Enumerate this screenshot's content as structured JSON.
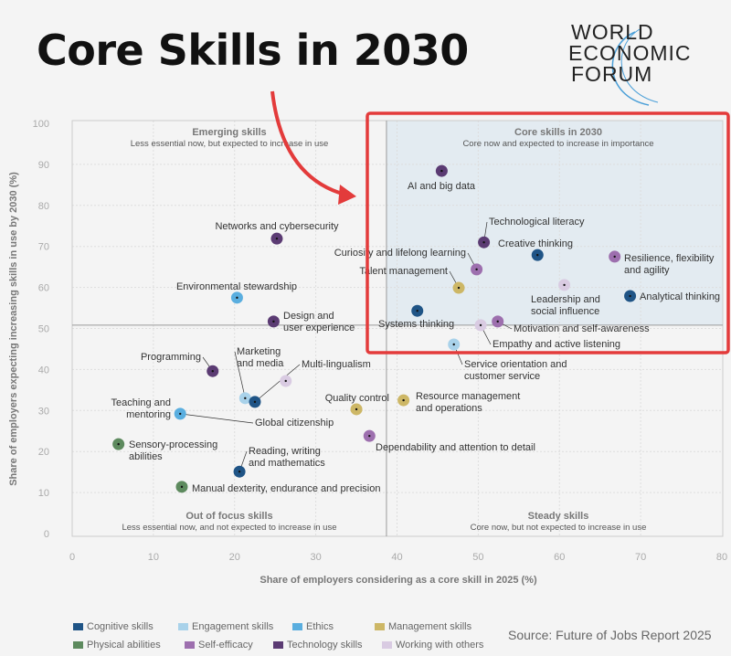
{
  "headline": "Core Skills in 2030",
  "logo": {
    "lines": [
      "WORLD",
      "ECONOMIC",
      "FORUM"
    ]
  },
  "source": "Source: Future of Jobs Report 2025",
  "chart_data": {
    "type": "scatter",
    "xlabel": "Share of employers considering as a core skill in 2025 (%)",
    "ylabel": "Share of employers expecting increasing skills in use by 2030 (%)",
    "xlim": [
      0,
      80
    ],
    "ylim": [
      0,
      100
    ],
    "xticks": [
      0,
      10,
      20,
      30,
      40,
      50,
      60,
      70,
      80
    ],
    "yticks": [
      0,
      10,
      20,
      30,
      40,
      50,
      60,
      70,
      80,
      90,
      100
    ],
    "grid": true,
    "dividers": {
      "x": 38.7,
      "y": 50.8
    },
    "highlight_quadrant": "top-right",
    "highlight_color": "#e33b3b",
    "quadrants": [
      {
        "title": "Emerging skills",
        "subtitle": "Less essential now, but expected to increase in use"
      },
      {
        "title": "Core skills in 2030",
        "subtitle": "Core now and expected to increase in importance"
      },
      {
        "title": "Out of focus skills",
        "subtitle": "Less essential now, and not expected to increase in use"
      },
      {
        "title": "Steady skills",
        "subtitle": "Core now, but not expected to increase in use"
      }
    ],
    "categories": [
      {
        "name": "Cognitive skills",
        "color": "#1f5486"
      },
      {
        "name": "Engagement skills",
        "color": "#a9d2ea"
      },
      {
        "name": "Ethics",
        "color": "#5aaedf"
      },
      {
        "name": "Management skills",
        "color": "#cdb766"
      },
      {
        "name": "Physical abilities",
        "color": "#5d8a5e"
      },
      {
        "name": "Self-efficacy",
        "color": "#9d6fae"
      },
      {
        "name": "Technology skills",
        "color": "#5b3b73"
      },
      {
        "name": "Working with others",
        "color": "#d9cbe2"
      }
    ],
    "points": [
      {
        "label": "AI and big data",
        "x": 45.5,
        "y": 88.4,
        "category": 6
      },
      {
        "label": "Technological literacy",
        "x": 50.7,
        "y": 71.0,
        "category": 6
      },
      {
        "label": "Creative thinking",
        "x": 57.3,
        "y": 67.9,
        "category": 0
      },
      {
        "label": "Resilience, flexibility|and agility",
        "x": 66.8,
        "y": 67.5,
        "category": 5
      },
      {
        "label": "Curiosity and lifelong learning",
        "x": 49.8,
        "y": 64.4,
        "category": 5
      },
      {
        "label": "Talent management",
        "x": 47.6,
        "y": 59.9,
        "category": 3
      },
      {
        "label": "Leadership and|social influence",
        "x": 60.6,
        "y": 60.6,
        "category": 7
      },
      {
        "label": "Analytical thinking",
        "x": 68.7,
        "y": 57.9,
        "category": 0
      },
      {
        "label": "Systems thinking",
        "x": 42.5,
        "y": 54.3,
        "category": 0
      },
      {
        "label": "Empathy and active listening",
        "x": 50.3,
        "y": 50.8,
        "category": 7
      },
      {
        "label": "Motivation and self-awareness",
        "x": 52.4,
        "y": 51.7,
        "category": 5
      },
      {
        "label": "Service orientation and|customer service",
        "x": 47.0,
        "y": 46.1,
        "category": 1
      },
      {
        "label": "Networks and cybersecurity",
        "x": 25.2,
        "y": 71.9,
        "category": 6
      },
      {
        "label": "Environmental stewardship",
        "x": 20.3,
        "y": 57.5,
        "category": 2
      },
      {
        "label": "Design and|user experience",
        "x": 24.8,
        "y": 51.7,
        "category": 6
      },
      {
        "label": "Programming",
        "x": 17.3,
        "y": 39.6,
        "category": 6
      },
      {
        "label": "Marketing|and media",
        "x": 21.3,
        "y": 33.0,
        "category": 1
      },
      {
        "label": "Multi-lingualism",
        "x": 22.5,
        "y": 32.1,
        "category": 0
      },
      {
        "label": "Teaching and|mentoring",
        "x": 26.3,
        "y": 37.2,
        "category": 7
      },
      {
        "label": "Global citizenship",
        "x": 13.3,
        "y": 29.2,
        "category": 2
      },
      {
        "label": "Quality control",
        "x": 35.0,
        "y": 30.3,
        "category": 3
      },
      {
        "label": "Resource management|and operations",
        "x": 40.8,
        "y": 32.5,
        "category": 3
      },
      {
        "label": "Dependability and attention to detail",
        "x": 36.6,
        "y": 23.8,
        "category": 5
      },
      {
        "label": "Sensory-processing|abilities",
        "x": 5.7,
        "y": 21.8,
        "category": 4
      },
      {
        "label": "Reading, writing|and mathematics",
        "x": 20.6,
        "y": 15.1,
        "category": 0
      },
      {
        "label": "Manual dexterity, endurance and precision",
        "x": 13.5,
        "y": 11.4,
        "category": 4
      }
    ]
  }
}
